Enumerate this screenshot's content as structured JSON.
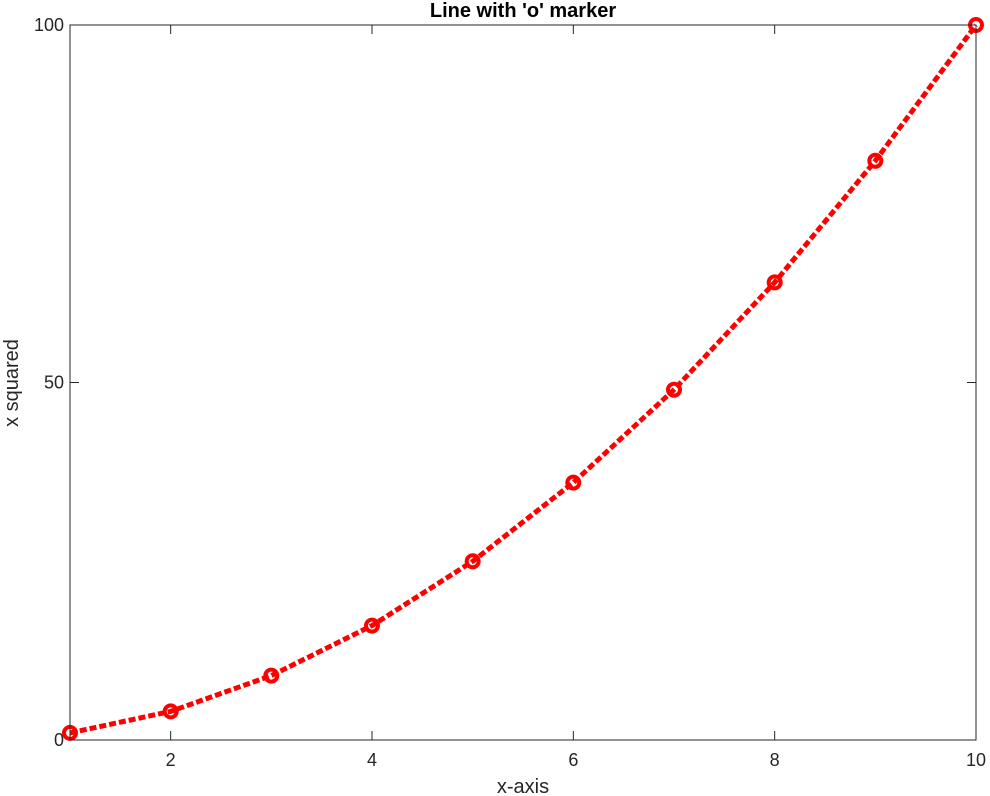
{
  "chart_data": {
    "type": "line",
    "title": "Line with 'o' marker",
    "xlabel": "x-axis",
    "ylabel": "x squared",
    "xlim": [
      1,
      10
    ],
    "ylim": [
      0,
      100
    ],
    "grid": false,
    "x_ticks": [
      2,
      4,
      6,
      8,
      10
    ],
    "y_ticks": [
      0,
      50,
      100
    ],
    "x_tick_labels": [
      "2",
      "4",
      "6",
      "8",
      "10"
    ],
    "y_tick_labels": [
      "0",
      "50",
      "100"
    ],
    "series": [
      {
        "x": [
          1,
          2,
          3,
          4,
          5,
          6,
          7,
          8,
          9,
          10
        ],
        "values": [
          1,
          4,
          9,
          16,
          25,
          36,
          49,
          64,
          81,
          100
        ],
        "color": "#ff0000",
        "line_style": "dashed",
        "marker": "circle"
      }
    ]
  }
}
